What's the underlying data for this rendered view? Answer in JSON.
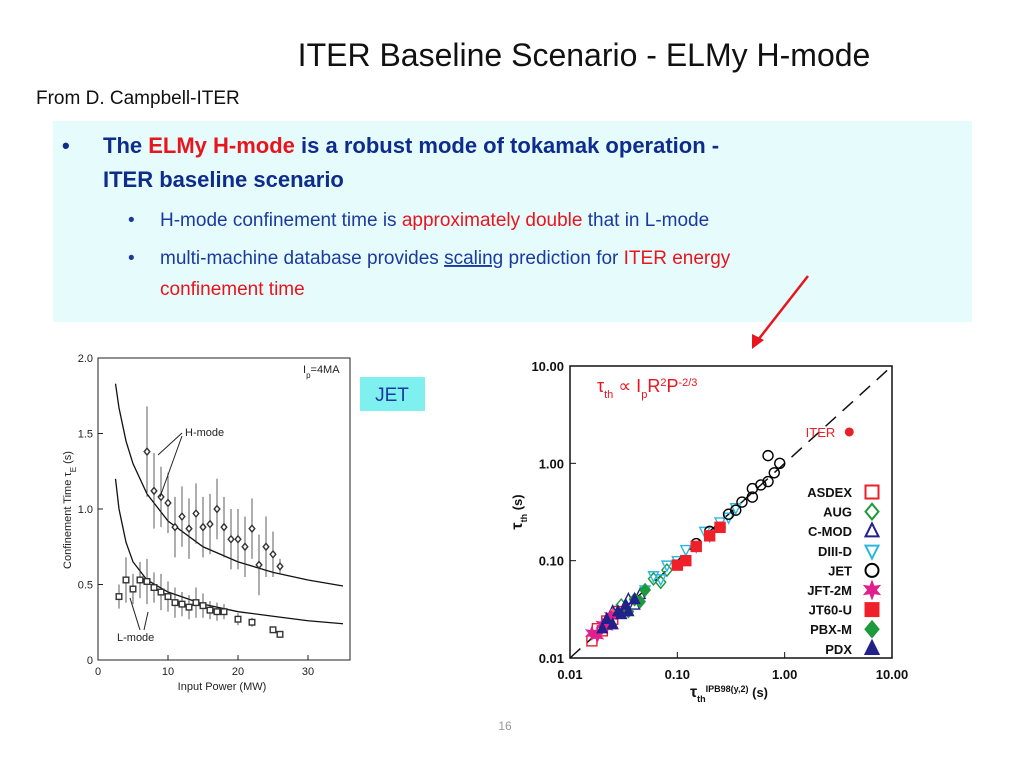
{
  "slide": {
    "title": "ITER Baseline Scenario - ELMy H-mode",
    "subtitle": "From D. Campbell-ITER",
    "bullets": [
      {
        "lines": [
          [
            "The ",
            "ELMy H-mode",
            " is a robust mode of tokamak operation -"
          ],
          [
            "ITER baseline scenario"
          ]
        ],
        "sub": [
          {
            "lines": [
              [
                "H-mode confinement time is ",
                "approximately double",
                " that in L-mode"
              ]
            ]
          },
          {
            "lines": [
              [
                "multi-machine database provides ",
                "scaling",
                " prediction for ",
                "ITER energy"
              ],
              [
                "confinement time"
              ]
            ]
          }
        ]
      }
    ],
    "page_number": "16"
  },
  "chart_data": [
    {
      "type": "scatter",
      "xlabel": "Input Power (MW)",
      "ylabel": [
        "Confinement Time τ",
        "E",
        " (s)"
      ],
      "annotation": [
        "I",
        "p",
        "=4MA"
      ],
      "tag": "JET",
      "xlim": [
        0,
        35
      ],
      "ylim": [
        0,
        2
      ],
      "xticks": [
        0,
        10,
        20,
        30
      ],
      "yticks": [
        0,
        0.5,
        {
          "value": 1,
          "label": "1.0"
        },
        1.5,
        {
          "value": 2,
          "label": "2.0"
        }
      ],
      "series": [
        {
          "name": "H-mode",
          "marker": "diamond",
          "color": "#333333",
          "x": [
            7,
            8,
            9,
            10,
            11,
            12,
            13,
            14,
            15,
            16,
            17,
            18,
            19,
            20,
            21,
            22,
            23,
            24,
            25,
            26
          ],
          "values": [
            1.38,
            1.12,
            1.08,
            1.04,
            0.88,
            0.95,
            0.87,
            0.97,
            0.88,
            0.9,
            1.0,
            0.88,
            0.8,
            0.8,
            0.75,
            0.87,
            0.63,
            0.75,
            0.7,
            0.62
          ],
          "errors": [
            0.3,
            0.25,
            0.2,
            0.2,
            0.2,
            0.2,
            0.2,
            0.2,
            0.2,
            0.2,
            0.2,
            0.2,
            0.2,
            0.2,
            0.2,
            0.2,
            0.2,
            0.2,
            0.15,
            0.05
          ]
        },
        {
          "name": "L-mode",
          "marker": "square",
          "color": "#333333",
          "x": [
            3,
            4,
            5,
            6,
            7,
            8,
            9,
            10,
            11,
            12,
            13,
            14,
            15,
            16,
            17,
            18,
            20,
            22,
            25,
            26
          ],
          "values": [
            0.42,
            0.53,
            0.47,
            0.53,
            0.52,
            0.48,
            0.45,
            0.42,
            0.38,
            0.37,
            0.35,
            0.38,
            0.36,
            0.33,
            0.32,
            0.32,
            0.27,
            0.25,
            0.2,
            0.17
          ],
          "errors": [
            0.08,
            0.15,
            0.1,
            0.12,
            0.15,
            0.1,
            0.12,
            0.1,
            0.1,
            0.08,
            0.08,
            0.1,
            0.08,
            0.06,
            0.06,
            0.05,
            0.04,
            0.03,
            0.02,
            0.02
          ]
        }
      ],
      "curves": [
        {
          "x": [
            2.5,
            3,
            4,
            5,
            7,
            10,
            15,
            20,
            25,
            30,
            35
          ],
          "values": [
            1.83,
            1.67,
            1.45,
            1.3,
            1.1,
            0.92,
            0.75,
            0.65,
            0.58,
            0.53,
            0.49
          ]
        },
        {
          "x": [
            2.5,
            3,
            4,
            5,
            7,
            10,
            15,
            20,
            25,
            30,
            35
          ],
          "values": [
            1.2,
            1.0,
            0.78,
            0.65,
            0.53,
            0.45,
            0.37,
            0.32,
            0.29,
            0.26,
            0.24
          ]
        }
      ]
    },
    {
      "type": "scatter",
      "log": true,
      "xlabel": [
        "τ",
        "th",
        "IPB98(y,2)",
        " (s)"
      ],
      "ylabel": [
        "τ",
        "th",
        " (s)"
      ],
      "formula": [
        "τ",
        "th",
        " ∝ I",
        "p",
        "R",
        "2",
        "P",
        "-2/3"
      ],
      "xlim": [
        0.01,
        10
      ],
      "ylim": [
        0.01,
        10
      ],
      "xticks": [
        0.01,
        {
          "value": 0.1,
          "label": "0.10"
        },
        {
          "value": 1,
          "label": "1.00"
        },
        {
          "value": 10,
          "label": "10.00"
        }
      ],
      "yticks": [
        0.01,
        {
          "value": 0.1,
          "label": "0.10"
        },
        {
          "value": 1,
          "label": "1.00"
        },
        {
          "value": 10,
          "label": "10.00"
        }
      ],
      "highlight": {
        "name": "ITER",
        "x": 4,
        "value": 2.1,
        "color": "#e8202a"
      },
      "series": [
        {
          "name": "ASDEX",
          "marker": "square",
          "filled": false,
          "color": "#e8202a",
          "x": [
            0.016,
            0.018,
            0.02,
            0.022,
            0.025,
            0.028
          ],
          "values": [
            0.015,
            0.02,
            0.019,
            0.024,
            0.025,
            0.03
          ]
        },
        {
          "name": "AUG",
          "marker": "diamond",
          "filled": false,
          "color": "#1c9a3c",
          "x": [
            0.03,
            0.04,
            0.05,
            0.06,
            0.07,
            0.08
          ],
          "values": [
            0.035,
            0.04,
            0.05,
            0.065,
            0.06,
            0.08
          ]
        },
        {
          "name": "C-MOD",
          "marker": "triangle",
          "filled": false,
          "color": "#22218a",
          "x": [
            0.025,
            0.03,
            0.035,
            0.04,
            0.045
          ],
          "values": [
            0.03,
            0.028,
            0.04,
            0.035,
            0.045
          ]
        },
        {
          "name": "DIII-D",
          "marker": "triangle-down",
          "filled": false,
          "color": "#2bb7e0",
          "x": [
            0.05,
            0.06,
            0.07,
            0.08,
            0.1,
            0.12,
            0.15,
            0.18,
            0.2,
            0.25,
            0.3,
            0.35
          ],
          "values": [
            0.05,
            0.07,
            0.065,
            0.09,
            0.1,
            0.13,
            0.14,
            0.2,
            0.18,
            0.25,
            0.28,
            0.35
          ]
        },
        {
          "name": "JET",
          "marker": "circle",
          "filled": false,
          "color": "#000000",
          "x": [
            0.15,
            0.2,
            0.25,
            0.3,
            0.35,
            0.4,
            0.5,
            0.6,
            0.7,
            0.8,
            0.9,
            0.5,
            0.7
          ],
          "values": [
            0.15,
            0.2,
            0.22,
            0.3,
            0.33,
            0.4,
            0.45,
            0.6,
            0.65,
            0.8,
            1.0,
            0.55,
            1.2
          ]
        },
        {
          "name": "JFT-2M",
          "marker": "star",
          "filled": true,
          "color": "#e0208c",
          "x": [
            0.016,
            0.018,
            0.02,
            0.022,
            0.024
          ],
          "values": [
            0.018,
            0.017,
            0.022,
            0.021,
            0.027
          ]
        },
        {
          "name": "JT60-U",
          "marker": "square",
          "filled": true,
          "color": "#f0202a",
          "x": [
            0.1,
            0.12,
            0.15,
            0.2,
            0.25
          ],
          "values": [
            0.09,
            0.1,
            0.14,
            0.18,
            0.22
          ]
        },
        {
          "name": "PBX-M",
          "marker": "diamond",
          "filled": true,
          "color": "#1c9a3c",
          "x": [
            0.035,
            0.04,
            0.045,
            0.05
          ],
          "values": [
            0.03,
            0.04,
            0.038,
            0.05
          ]
        },
        {
          "name": "PDX",
          "marker": "triangle",
          "filled": true,
          "color": "#22218a",
          "x": [
            0.02,
            0.022,
            0.025,
            0.028,
            0.03,
            0.033,
            0.035,
            0.04
          ],
          "values": [
            0.02,
            0.025,
            0.022,
            0.03,
            0.028,
            0.035,
            0.03,
            0.04
          ]
        }
      ]
    }
  ]
}
